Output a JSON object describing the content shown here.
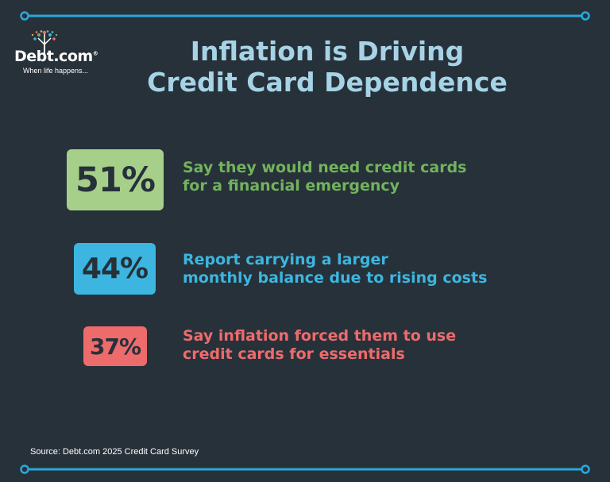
{
  "colors": {
    "background": "#27313a",
    "rule": "#29a8d9",
    "title": "#a6d3e6",
    "green": "#72b35c",
    "green_badge": "#a6d08a",
    "blue": "#3cb6e0",
    "blue_badge": "#3cb6e0",
    "red": "#ee6b6c",
    "red_badge": "#ee6b6c"
  },
  "logo": {
    "brand": "Debt.com",
    "trademark": "®",
    "tagline": "When life happens..."
  },
  "title": {
    "line1": "Inflation is Driving",
    "line2": "Credit Card Dependence"
  },
  "stats": [
    {
      "percent": "51%",
      "value": 51,
      "line1": "Say they would need credit cards",
      "line2": "for a financial emergency"
    },
    {
      "percent": "44%",
      "value": 44,
      "line1": "Report carrying a larger",
      "line2": "monthly balance due to rising costs"
    },
    {
      "percent": "37%",
      "value": 37,
      "line1": "Say inflation forced them to use",
      "line2": "credit cards for essentials"
    }
  ],
  "source": "Source: Debt.com 2025 Credit Card Survey"
}
